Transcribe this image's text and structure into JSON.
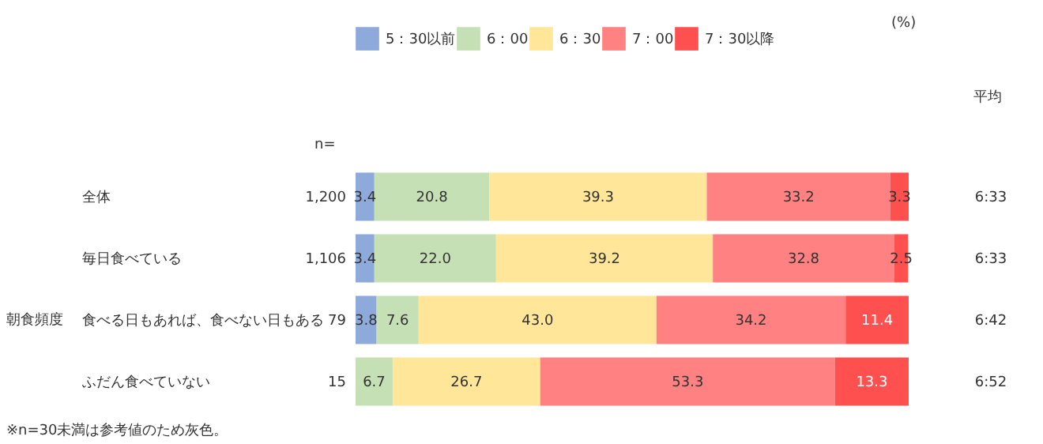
{
  "chart_data": {
    "type": "bar",
    "orientation": "horizontal",
    "stacked": true,
    "legend": "top",
    "tick_labels": "y",
    "categories": [
      "全体",
      "毎日食べている",
      "食べる日もあれば、食べない日もある",
      "ふだん食べていない"
    ],
    "series": [
      {
        "name": "5：30以前",
        "color": "#8eaadb",
        "values": [
          3.4,
          3.4,
          3.8,
          null
        ],
        "value_labels": [
          "3.4",
          "3.4",
          "3.8",
          null
        ]
      },
      {
        "name": "6：00",
        "color": "#c5e0b4",
        "values": [
          20.8,
          22.0,
          7.6,
          6.7
        ],
        "value_labels": [
          "20.8",
          "22.0",
          "7.6",
          "6.7"
        ]
      },
      {
        "name": "6：30",
        "color": "#ffe699",
        "values": [
          39.3,
          39.2,
          43.0,
          26.7
        ],
        "value_labels": [
          "39.3",
          "39.2",
          "43.0",
          "26.7"
        ]
      },
      {
        "name": "7：00",
        "color": "#ff8181",
        "values": [
          33.2,
          32.8,
          34.2,
          53.3
        ],
        "value_labels": [
          "33.2",
          "32.8",
          "34.2",
          "53.3"
        ]
      },
      {
        "name": "7：30以降",
        "color": "#ff5050",
        "values": [
          3.3,
          2.5,
          11.4,
          13.3
        ],
        "value_labels": [
          "3.3",
          "2.5",
          "11.4",
          "13.3"
        ]
      }
    ],
    "annotations": [
      "(%)",
      "n=",
      "平均",
      "1,200",
      "1,106",
      "79",
      "15",
      "6:33",
      "6:33",
      "6:42",
      "6:52",
      "朝食頻度",
      "※n=30未満は参考値のため灰色。"
    ]
  }
}
